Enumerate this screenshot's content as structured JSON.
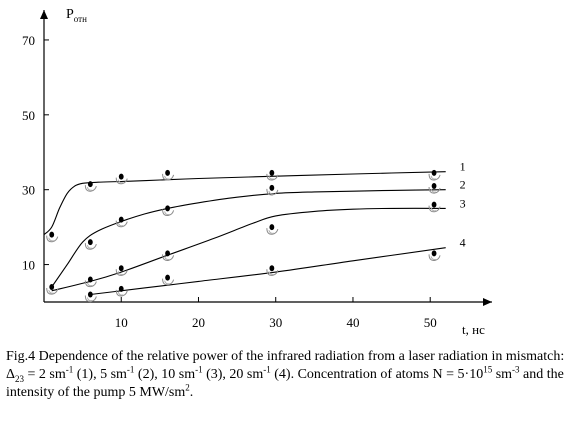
{
  "chart_data": {
    "type": "line",
    "title": "",
    "xlabel": "t, нс",
    "ylabel": "P",
    "ylabel_sub": "отн",
    "xlim": [
      0,
      58
    ],
    "ylim": [
      0,
      78
    ],
    "xticks": [
      10,
      20,
      30,
      40,
      50
    ],
    "yticks": [
      10,
      30,
      50,
      70
    ],
    "grid": false,
    "series": [
      {
        "name": "1",
        "curve": {
          "x": [
            0,
            1,
            2,
            3,
            4,
            5,
            7,
            10,
            15,
            20,
            30,
            40,
            52
          ],
          "y": [
            18,
            20,
            25,
            29,
            31,
            31.7,
            32,
            32.2,
            32.6,
            33,
            33.6,
            34.2,
            34.8
          ]
        },
        "points": {
          "x": [
            1,
            6,
            10,
            16,
            29.5,
            50.5
          ],
          "y": [
            18,
            31.5,
            33.5,
            34.5,
            34.5,
            34.5
          ]
        }
      },
      {
        "name": "2",
        "curve": {
          "x": [
            1,
            3,
            5,
            7,
            10,
            13,
            16,
            20,
            25,
            30,
            35,
            40,
            45,
            52
          ],
          "y": [
            4,
            10,
            16,
            19,
            21.5,
            23.5,
            25,
            26.5,
            28,
            29,
            29.4,
            29.6,
            29.8,
            30
          ]
        },
        "points": {
          "x": [
            1,
            6,
            10,
            16,
            29.5,
            50.5
          ],
          "y": [
            4,
            16,
            22,
            25,
            30.5,
            31
          ]
        }
      },
      {
        "name": "3",
        "curve": {
          "x": [
            1,
            6,
            10,
            16,
            22,
            27,
            30,
            35,
            40,
            45,
            52
          ],
          "y": [
            3,
            5.5,
            8,
            12.5,
            17,
            21,
            23,
            24.2,
            24.8,
            25,
            25
          ]
        },
        "points": {
          "x": [
            6,
            10,
            16,
            29.5,
            50.5
          ],
          "y": [
            6,
            9,
            13,
            20,
            26
          ]
        }
      },
      {
        "name": "4",
        "curve": {
          "x": [
            6,
            10,
            16,
            20,
            30,
            40,
            52
          ],
          "y": [
            2,
            3,
            4.5,
            5.5,
            8,
            11,
            14.5
          ]
        },
        "points": {
          "x": [
            6,
            10,
            16,
            29.5,
            50.5
          ],
          "y": [
            2,
            3.5,
            6.5,
            9,
            13
          ]
        }
      }
    ]
  },
  "caption": {
    "fig": "Fig.4 Dependence of the relative power of the infrared radiation from a laser radiation in mismatch: ",
    "delta": "Δ",
    "delta_sub": "23",
    "v1": " = 2 sm",
    "exp1": "-1",
    "l1": " (1), 5 sm",
    "exp2": "-1",
    "l2": " (2), 10 sm",
    "exp3": "-1",
    "l3": " (3), 20 sm",
    "exp4": "-1",
    "l4": " (4). Concentration of atoms N = 5",
    "dot": "·",
    "ten": "10",
    "exp5": "15",
    "u5": " sm",
    "exp6": "-3",
    "rest": " and the intensity of the pump 5 MW/sm",
    "exp7": "2",
    "end": "."
  }
}
